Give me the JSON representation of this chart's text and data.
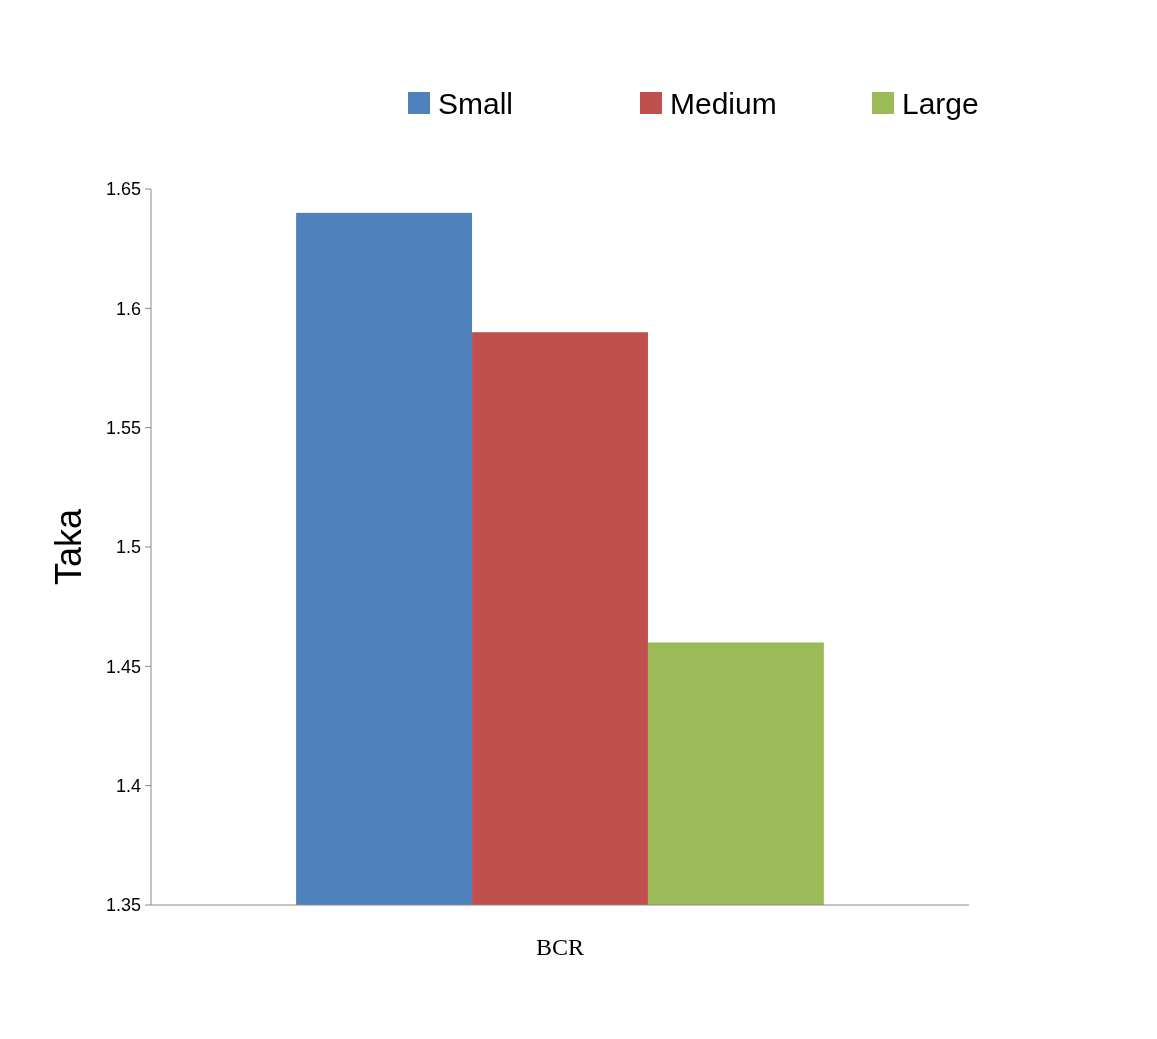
{
  "chart_data": {
    "type": "bar",
    "ylabel": "Taka",
    "categories": [
      "BCR"
    ],
    "series": [
      {
        "name": "Small",
        "color": "#4f81bd",
        "values": [
          1.64
        ]
      },
      {
        "name": "Medium",
        "color": "#c0504d",
        "values": [
          1.59
        ]
      },
      {
        "name": "Large",
        "color": "#9bbb59",
        "values": [
          1.46
        ]
      }
    ],
    "ylim": [
      1.35,
      1.65
    ],
    "yticks": [
      1.35,
      1.4,
      1.45,
      1.5,
      1.55,
      1.6,
      1.65
    ],
    "legend": "top",
    "grid": false
  }
}
